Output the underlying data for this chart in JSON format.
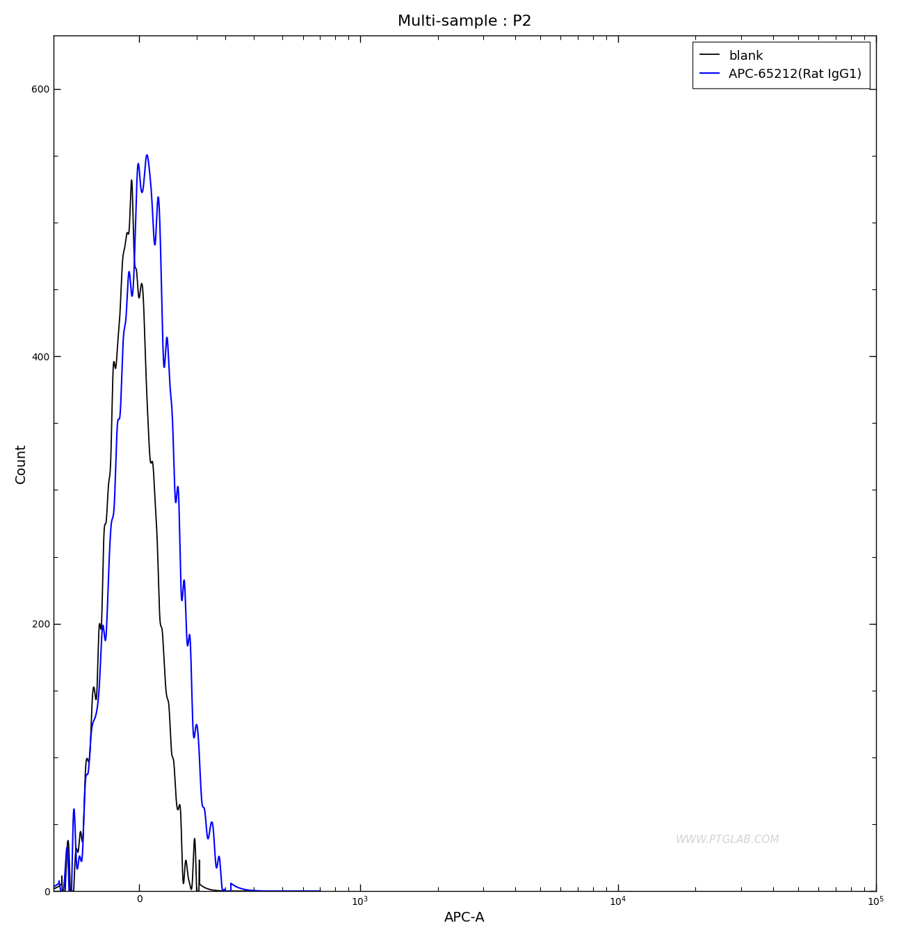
{
  "title": "Multi-sample : P2",
  "xlabel": "APC-A",
  "ylabel": "Count",
  "ylim": [
    0,
    640
  ],
  "yticks": [
    0,
    200,
    400,
    600
  ],
  "xlim_left": -300,
  "xlim_right": 100000,
  "linthresh": 500,
  "linscale": 0.5,
  "line_black_label": "blank",
  "line_blue_label": "APC-65212(Rat IgG1)",
  "line_black_color": "#000000",
  "line_blue_color": "#0000ff",
  "watermark": "WWW.PTGLAB.COM",
  "background_color": "#ffffff",
  "black_peak_x": -30,
  "black_peak_y": 490,
  "black_sigma": 80,
  "blue_peak_x": 20,
  "blue_peak_y": 530,
  "blue_sigma": 100,
  "title_fontsize": 16,
  "axis_fontsize": 14,
  "legend_fontsize": 13,
  "linewidth_black": 1.3,
  "linewidth_blue": 1.5
}
